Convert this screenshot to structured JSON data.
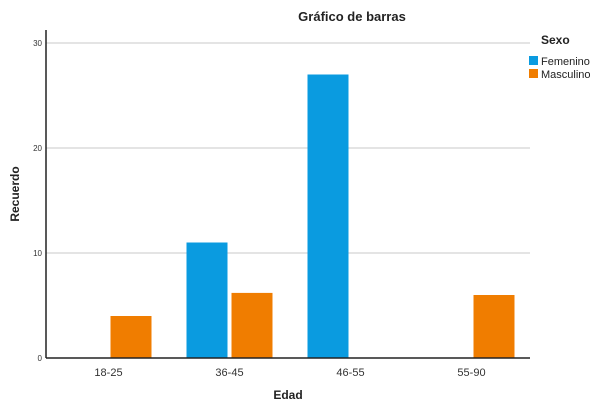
{
  "chart_data": {
    "type": "bar",
    "title": "Gráfico de barras",
    "xlabel": "Edad",
    "ylabel": "Recuerdo",
    "categories": [
      "18-25",
      "36-45",
      "46-55",
      "55-90"
    ],
    "series": [
      {
        "name": "Femenino",
        "color": "#0a9be0",
        "values": [
          null,
          11,
          27,
          null
        ]
      },
      {
        "name": "Masculino",
        "color": "#f07d00",
        "values": [
          4,
          6.2,
          null,
          6
        ]
      }
    ],
    "ylim": [
      0,
      30
    ],
    "yticks": [
      "0",
      "10",
      "20",
      "30"
    ],
    "grid": true,
    "legend": {
      "title": "Sexo",
      "placement": "top-right"
    }
  }
}
